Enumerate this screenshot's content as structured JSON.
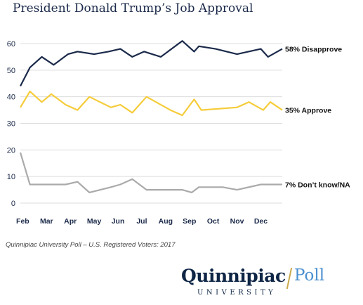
{
  "title": "President Donald Trump’s Job Approval",
  "source": "Quinnipiac University Poll – U.S. Registered Voters: 2017",
  "logo": {
    "brand": "Quinnipiac",
    "poll": "Poll",
    "university": "UNIVERSITY"
  },
  "chart_data": {
    "type": "line",
    "title": "President Donald Trump’s Job Approval",
    "ylim": [
      0,
      60
    ],
    "yticks": [
      0,
      10,
      20,
      30,
      40,
      50,
      60
    ],
    "xlim": [
      0.9,
      11.9
    ],
    "xticks": [
      "Feb",
      "Mar",
      "Apr",
      "May",
      "Jun",
      "Jul",
      "Aug",
      "Sep",
      "Oct",
      "Nov",
      "Dec"
    ],
    "grid": true,
    "series": [
      {
        "name": "Disapprove",
        "end_label": "58% Disapprove",
        "color": "#1b2a4a",
        "points": [
          [
            0.9,
            44
          ],
          [
            1.3,
            51
          ],
          [
            1.8,
            55
          ],
          [
            2.3,
            52
          ],
          [
            2.9,
            56
          ],
          [
            3.3,
            57
          ],
          [
            4.0,
            56
          ],
          [
            4.6,
            57
          ],
          [
            5.1,
            58
          ],
          [
            5.6,
            55
          ],
          [
            6.1,
            57
          ],
          [
            6.8,
            55
          ],
          [
            7.7,
            61
          ],
          [
            8.2,
            57
          ],
          [
            8.4,
            59
          ],
          [
            9.1,
            58
          ],
          [
            10.0,
            56
          ],
          [
            11.0,
            58
          ],
          [
            11.3,
            55
          ],
          [
            11.9,
            58
          ]
        ]
      },
      {
        "name": "Approve",
        "end_label": "35% Approve",
        "color": "#f5cc3a",
        "points": [
          [
            0.9,
            36
          ],
          [
            1.3,
            42
          ],
          [
            1.8,
            38
          ],
          [
            2.2,
            41
          ],
          [
            2.8,
            37
          ],
          [
            3.3,
            35
          ],
          [
            3.8,
            40
          ],
          [
            4.7,
            36
          ],
          [
            5.1,
            37
          ],
          [
            5.6,
            34
          ],
          [
            6.2,
            40
          ],
          [
            7.2,
            35
          ],
          [
            7.7,
            33
          ],
          [
            8.2,
            39
          ],
          [
            8.5,
            35
          ],
          [
            10.0,
            36
          ],
          [
            10.5,
            38
          ],
          [
            11.1,
            35
          ],
          [
            11.4,
            38
          ],
          [
            11.9,
            35
          ]
        ]
      },
      {
        "name": "Don’t know/NA",
        "end_label": "7% Don’t know/NA",
        "color": "#aaaaaa",
        "points": [
          [
            0.9,
            19
          ],
          [
            1.3,
            7
          ],
          [
            2.3,
            7
          ],
          [
            2.8,
            7
          ],
          [
            3.3,
            8
          ],
          [
            3.8,
            4
          ],
          [
            4.7,
            6
          ],
          [
            5.1,
            7
          ],
          [
            5.6,
            9
          ],
          [
            6.2,
            5
          ],
          [
            7.2,
            5
          ],
          [
            7.7,
            5
          ],
          [
            8.1,
            4
          ],
          [
            8.4,
            6
          ],
          [
            9.4,
            6
          ],
          [
            10.0,
            5
          ],
          [
            11.0,
            7
          ],
          [
            11.4,
            7
          ],
          [
            11.9,
            7
          ]
        ]
      }
    ]
  }
}
